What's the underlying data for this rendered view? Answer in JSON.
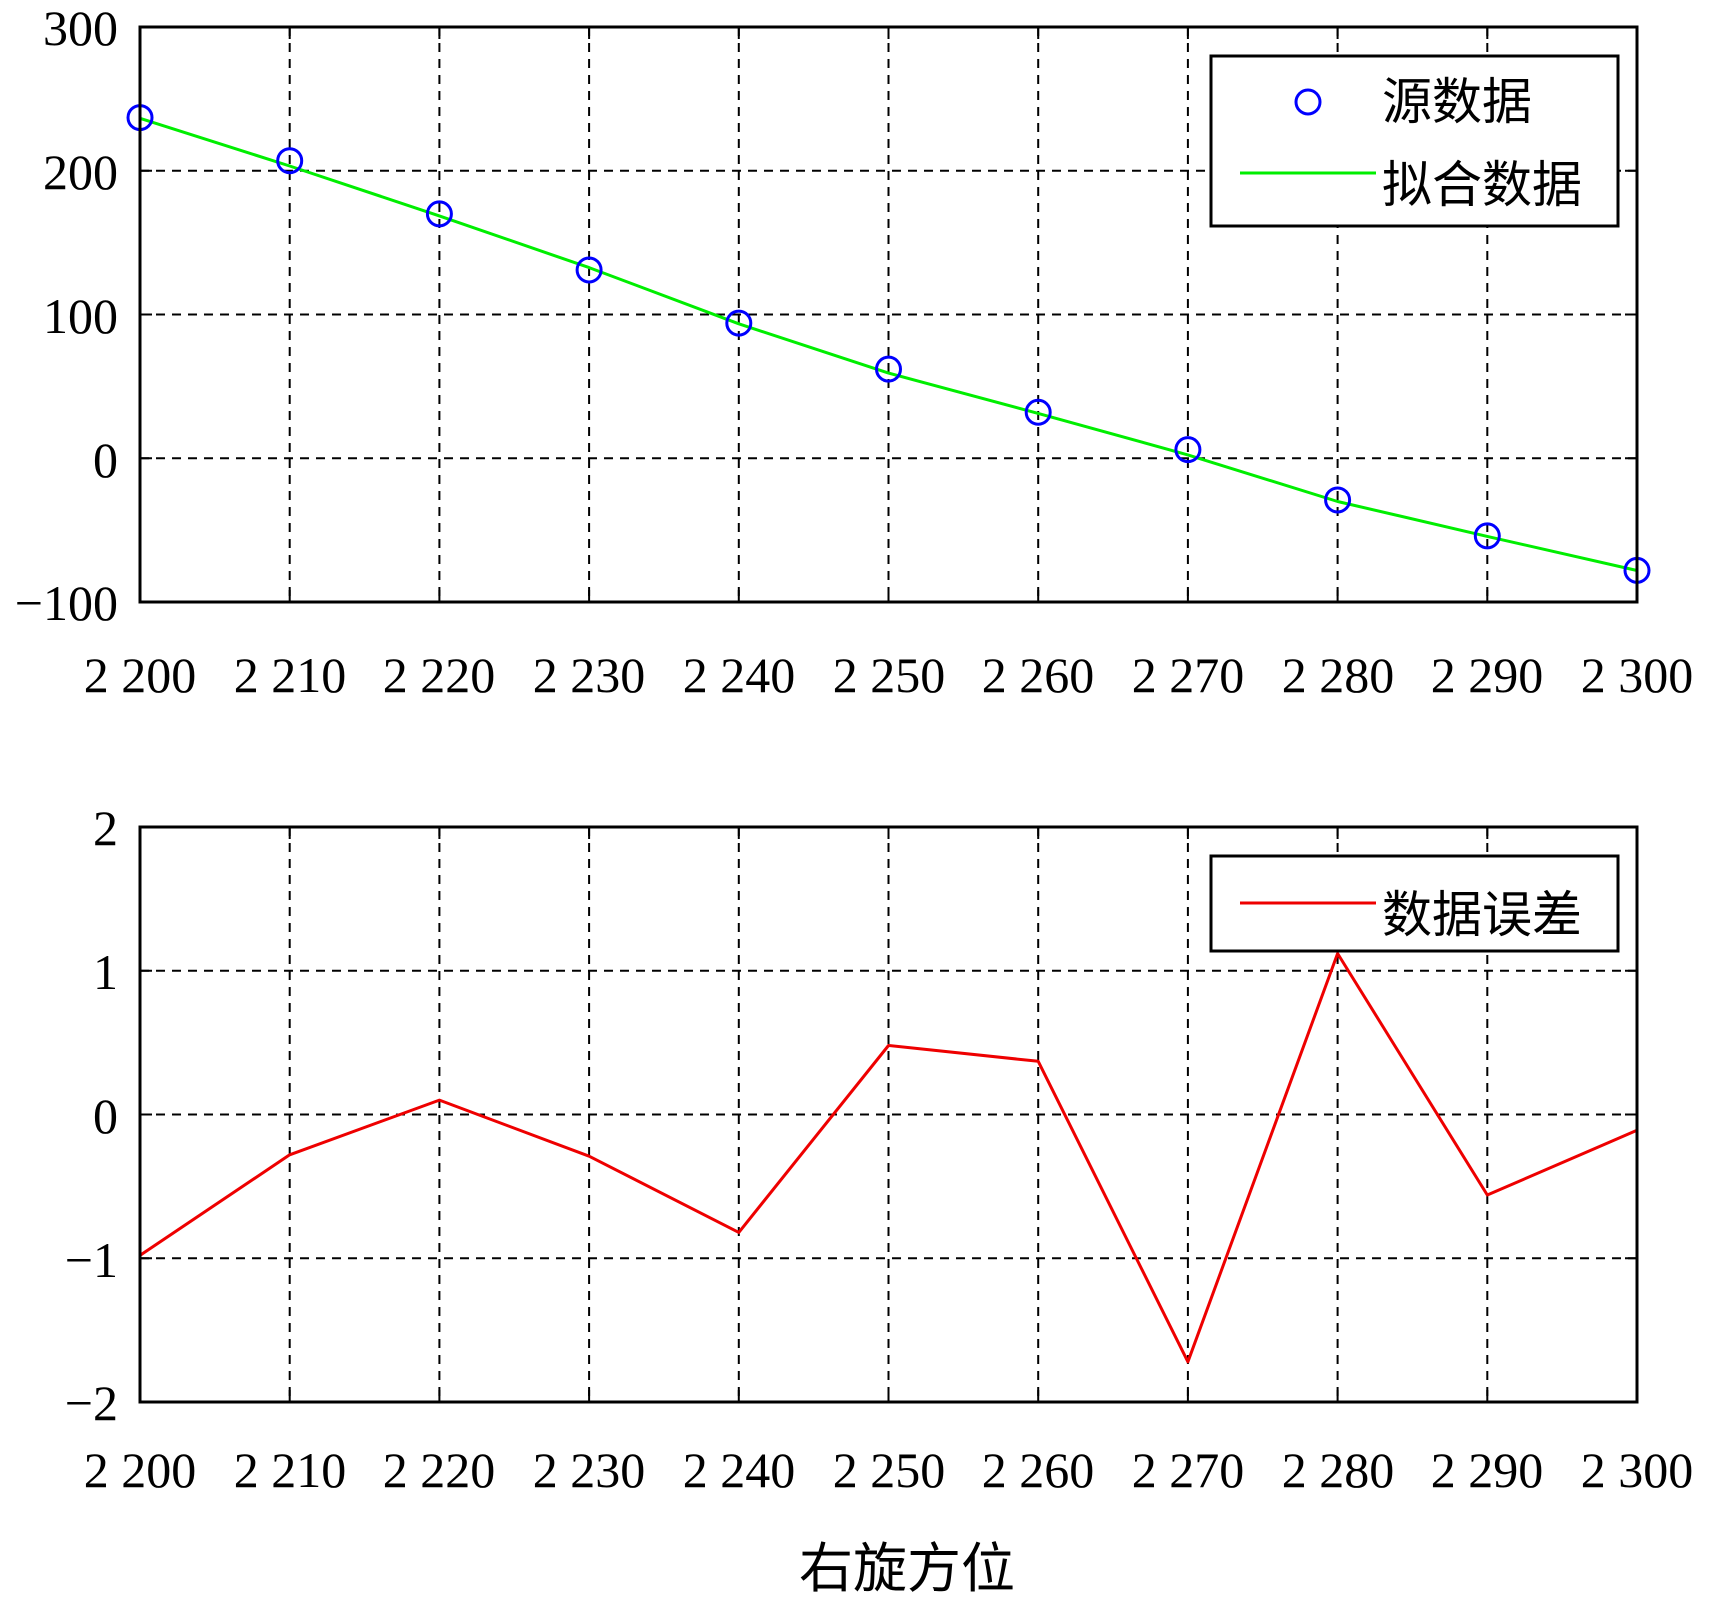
{
  "chart_data": [
    {
      "type": "line",
      "x_tick_labels": [
        "2 200",
        "2 210",
        "2 220",
        "2 230",
        "2 240",
        "2 250",
        "2 260",
        "2 270",
        "2 280",
        "2 290",
        "2 300"
      ],
      "y_tick_labels": [
        "300",
        "200",
        "100",
        "0",
        "−100"
      ],
      "xlim": [
        2200,
        2300
      ],
      "ylim": [
        -100,
        300
      ],
      "grid": true,
      "legend_position": "top-right",
      "series": [
        {
          "name": "源数据",
          "style": "markers",
          "marker": "circle",
          "color": "#0000ff",
          "x": [
            2200,
            2210,
            2220,
            2230,
            2240,
            2250,
            2260,
            2270,
            2280,
            2290,
            2300
          ],
          "y": [
            237,
            207,
            170,
            131,
            94,
            62,
            32,
            6,
            -29,
            -54,
            -78
          ]
        },
        {
          "name": "拟合数据",
          "style": "line",
          "color": "#00ee00",
          "x": [
            2200,
            2210,
            2220,
            2230,
            2240,
            2250,
            2260,
            2270,
            2280,
            2290,
            2300
          ],
          "y": [
            236.5,
            203.3,
            168.6,
            132.6,
            93.5,
            59.2,
            31.2,
            2.3,
            -30.1,
            -54.4,
            -78.1
          ]
        }
      ]
    },
    {
      "type": "line",
      "x_tick_labels": [
        "2 200",
        "2 210",
        "2 220",
        "2 230",
        "2 240",
        "2 250",
        "2 260",
        "2 270",
        "2 280",
        "2 290",
        "2 300"
      ],
      "y_tick_labels": [
        "2",
        "1",
        "0",
        "−1",
        "−2"
      ],
      "xlim": [
        2200,
        2300
      ],
      "ylim": [
        -2,
        2
      ],
      "grid": true,
      "legend_position": "top-right",
      "xlabel": "右旋方位",
      "series": [
        {
          "name": "数据误差",
          "style": "line",
          "color": "#ee0000",
          "x": [
            2200,
            2210,
            2220,
            2230,
            2240,
            2250,
            2260,
            2270,
            2280,
            2290,
            2300
          ],
          "y": [
            -0.98,
            -0.28,
            0.1,
            -0.29,
            -0.82,
            0.48,
            0.37,
            -1.72,
            1.12,
            -0.56,
            -0.11
          ]
        }
      ]
    }
  ]
}
